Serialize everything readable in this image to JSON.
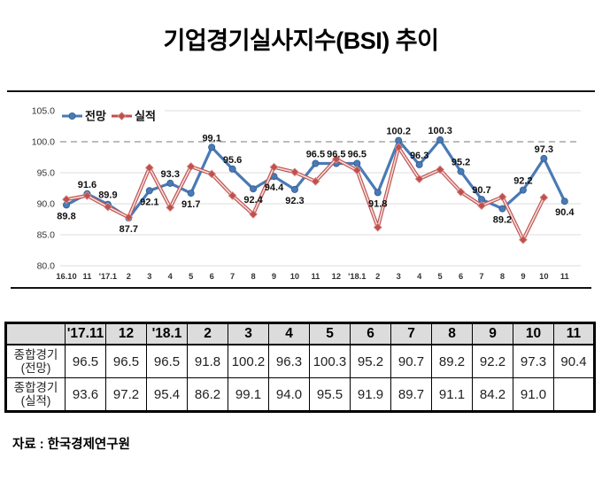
{
  "title": "기업경기실사지수(BSI) 추이",
  "source": "자료 : 한국경제연구원",
  "colors": {
    "forecast_blue": "#4a7ab5",
    "actual_red": "#c0504d",
    "grid": "#dcdcdc",
    "baseline_dash": "#a6a6a6",
    "table_header_bg": "#dcdcdc"
  },
  "chart_data": {
    "type": "line",
    "title": "기업경기실사지수(BSI) 추이",
    "xlabel": "",
    "ylabel": "",
    "ylim": [
      80,
      105
    ],
    "yticks": [
      80,
      85,
      90,
      95,
      100,
      105
    ],
    "dashed_line_at": 100,
    "grid": true,
    "legend_position": "top-left",
    "x": [
      "16.10",
      "11",
      "'17.1",
      "2",
      "3",
      "4",
      "5",
      "6",
      "7",
      "8",
      "9",
      "10",
      "11",
      "12",
      "'18.1",
      "2",
      "3",
      "4",
      "5",
      "6",
      "7",
      "8",
      "9",
      "10",
      "11"
    ],
    "series": [
      {
        "name": "전망",
        "color": "#4a7ab5",
        "marker": "circle",
        "values": [
          89.8,
          91.6,
          89.9,
          87.7,
          92.1,
          93.3,
          91.7,
          99.1,
          95.6,
          92.4,
          94.4,
          92.3,
          96.5,
          96.5,
          96.5,
          91.8,
          100.2,
          96.3,
          100.3,
          95.2,
          90.7,
          89.2,
          92.2,
          97.3,
          90.4
        ],
        "show_labels": true,
        "label_pos": [
          "below",
          "above",
          "above",
          "below",
          "below",
          "above",
          "below",
          "above",
          "above",
          "below",
          "below",
          "below",
          "above",
          "above",
          "above",
          "below",
          "above",
          "above",
          "above",
          "above",
          "above",
          "below",
          "above",
          "above",
          "below"
        ]
      },
      {
        "name": "실적",
        "color": "#c0504d",
        "marker": "diamond",
        "values": [
          90.7,
          91.3,
          89.5,
          87.8,
          95.8,
          89.4,
          96.0,
          94.8,
          91.3,
          88.3,
          95.9,
          95.1,
          93.6,
          97.2,
          95.4,
          86.2,
          99.1,
          94.0,
          95.5,
          91.9,
          89.7,
          91.1,
          84.2,
          91.0,
          null
        ],
        "show_labels": false,
        "label_pos": []
      }
    ]
  },
  "table": {
    "header": [
      "",
      "'17.11",
      "12",
      "'18.1",
      "2",
      "3",
      "4",
      "5",
      "6",
      "7",
      "8",
      "9",
      "10",
      "11"
    ],
    "rows": [
      {
        "label": [
          "종합경기",
          "(전망)"
        ],
        "values": [
          "96.5",
          "96.5",
          "96.5",
          "91.8",
          "100.2",
          "96.3",
          "100.3",
          "95.2",
          "90.7",
          "89.2",
          "92.2",
          "97.3",
          "90.4"
        ]
      },
      {
        "label": [
          "종합경기",
          "(실적)"
        ],
        "values": [
          "93.6",
          "97.2",
          "95.4",
          "86.2",
          "99.1",
          "94.0",
          "95.5",
          "91.9",
          "89.7",
          "91.1",
          "84.2",
          "91.0",
          ""
        ]
      }
    ]
  }
}
